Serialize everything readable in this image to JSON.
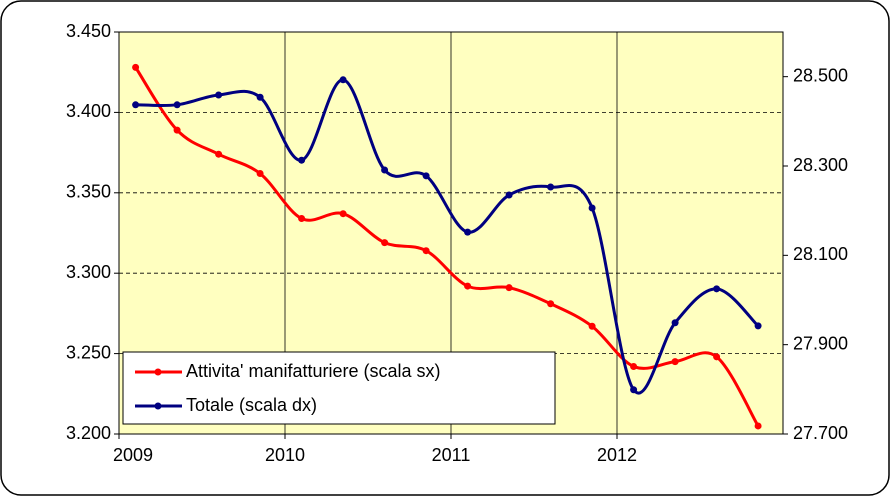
{
  "chart_data": {
    "type": "line",
    "x": [
      2009.1,
      2009.35,
      2009.6,
      2009.85,
      2010.1,
      2010.35,
      2010.6,
      2010.85,
      2011.1,
      2011.35,
      2011.6,
      2011.85,
      2012.1,
      2012.35,
      2012.6,
      2012.85
    ],
    "xlim": [
      2009,
      2013
    ],
    "xticks": [
      2009,
      2010,
      2011,
      2012
    ],
    "ylim": [
      3200,
      3450
    ],
    "yticks": [
      {
        "value": 3200,
        "label": "3.200"
      },
      {
        "value": 3250,
        "label": "3.250"
      },
      {
        "value": 3300,
        "label": "3.300"
      },
      {
        "value": 3350,
        "label": "3.350"
      },
      {
        "value": 3400,
        "label": "3.400"
      },
      {
        "value": 3450,
        "label": "3.450"
      }
    ],
    "y2lim": [
      27700,
      28600
    ],
    "y2ticks": [
      {
        "value": 27700,
        "label": "27.700"
      },
      {
        "value": 27900,
        "label": "27.900"
      },
      {
        "value": 28100,
        "label": "28.100"
      },
      {
        "value": 28300,
        "label": "28.300"
      },
      {
        "value": 28500,
        "label": "28.500"
      }
    ],
    "grid": true,
    "legend": "lower left",
    "series": [
      {
        "name": "Attivita' manifatturiere (scala sx)",
        "color": "#ff0000",
        "values": [
          3428,
          3389,
          3374,
          3362,
          3334,
          3337,
          3319,
          3314,
          3292,
          3291,
          3281,
          3267,
          3242,
          3245,
          3248,
          3205
        ]
      },
      {
        "name": "Totale (scala dx)",
        "color": "#000080",
        "axis": "y2",
        "values": [
          28437,
          28437,
          28459,
          28454,
          28313,
          28493,
          28291,
          28278,
          28152,
          28235,
          28253,
          28206,
          27799,
          27949,
          28025,
          27942
        ]
      }
    ]
  }
}
